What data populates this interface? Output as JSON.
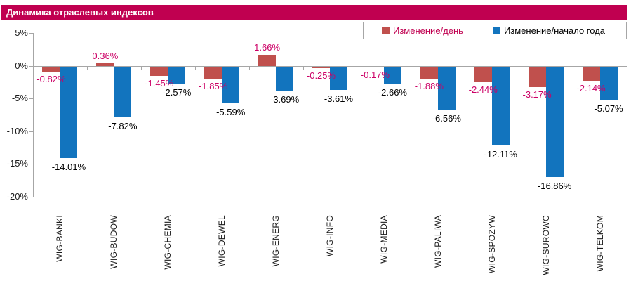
{
  "title": "Динамика отраслевых индексов",
  "colors": {
    "title_bg": "#C00050",
    "day_bar": "#C0504D",
    "ytd_bar": "#1274BE",
    "day_label_text": "#CC0066",
    "legend_day_text": "#C00050",
    "axis": "#A6A6A6",
    "legend_border": "#A6A6A6",
    "text": "#1a1a1a"
  },
  "chart_data": {
    "type": "bar",
    "title": "Динамика отраслевых индексов",
    "categories": [
      "WIG-BANKI",
      "WIG-BUDOW",
      "WIG-CHEMIA",
      "WIG-DEWEL",
      "WIG-ENERG",
      "WIG-INFO",
      "WIG-MEDIA",
      "WIG-PALIWA",
      "WIG-SPOZYW",
      "WIG-SUROWC",
      "WIG-TELKOM"
    ],
    "series": [
      {
        "name": "Изменение/день",
        "color": "#C0504D",
        "label_color": "#CC0066",
        "values": [
          -0.82,
          0.36,
          -1.45,
          -1.85,
          1.66,
          -0.25,
          -0.17,
          -1.88,
          -2.44,
          -3.17,
          -2.14
        ],
        "labels": [
          "-0.82%",
          "0.36%",
          "-1.45%",
          "-1.85%",
          "1.66%",
          "-0.25%",
          "-0.17%",
          "-1.88%",
          "-2.44%",
          "-3.17%",
          "-2.14%"
        ]
      },
      {
        "name": "Изменение/начало года",
        "color": "#1274BE",
        "label_color": "#000000",
        "values": [
          -14.01,
          -7.82,
          -2.57,
          -5.59,
          -3.69,
          -3.61,
          -2.66,
          -6.56,
          -12.11,
          -16.86,
          -5.07
        ],
        "labels": [
          "-14.01%",
          "-7.82%",
          "-2.57%",
          "-5.59%",
          "-3.69%",
          "-3.61%",
          "-2.66%",
          "-6.56%",
          "-12.11%",
          "-16.86%",
          "-5.07%"
        ]
      }
    ],
    "ylim": [
      -20,
      5
    ],
    "yticks": [
      {
        "value": 5,
        "label": "5%"
      },
      {
        "value": 0,
        "label": "0%"
      },
      {
        "value": -5,
        "label": "-5%"
      },
      {
        "value": -10,
        "label": "-10%"
      },
      {
        "value": -15,
        "label": "-15%"
      },
      {
        "value": -20,
        "label": "-20%"
      }
    ],
    "legend_position": "top-right",
    "grid": false
  }
}
